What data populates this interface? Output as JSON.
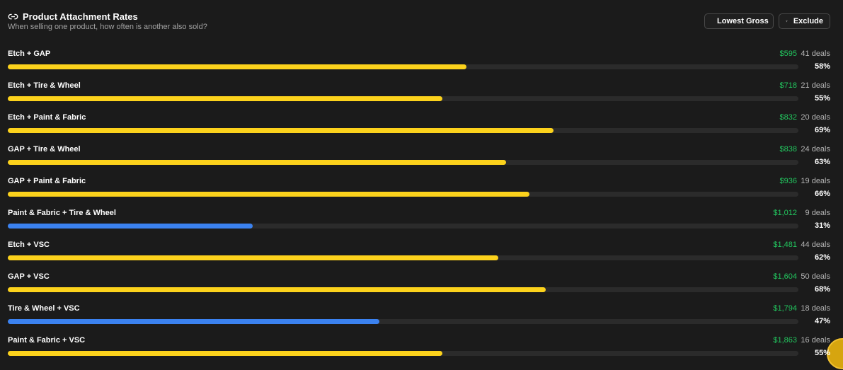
{
  "header": {
    "title": "Product Attachment Rates",
    "subtitle": "When selling one product, how often is another also sold?"
  },
  "buttons": {
    "sort": "Lowest Gross",
    "filter": "Exclude"
  },
  "rows": [
    {
      "label": "Etch + GAP",
      "gross": "$595",
      "deals": "41 deals",
      "rate": 58,
      "rate_label": "58%",
      "color": "#fcd21c"
    },
    {
      "label": "Etch + Tire & Wheel",
      "gross": "$718",
      "deals": "21 deals",
      "rate": 55,
      "rate_label": "55%",
      "color": "#fcd21c"
    },
    {
      "label": "Etch + Paint & Fabric",
      "gross": "$832",
      "deals": "20 deals",
      "rate": 69,
      "rate_label": "69%",
      "color": "#fcd21c"
    },
    {
      "label": "GAP + Tire & Wheel",
      "gross": "$838",
      "deals": "24 deals",
      "rate": 63,
      "rate_label": "63%",
      "color": "#fcd21c"
    },
    {
      "label": "GAP + Paint & Fabric",
      "gross": "$936",
      "deals": "19 deals",
      "rate": 66,
      "rate_label": "66%",
      "color": "#fcd21c"
    },
    {
      "label": "Paint & Fabric + Tire & Wheel",
      "gross": "$1,012",
      "deals": "9 deals",
      "rate": 31,
      "rate_label": "31%",
      "color": "#3b82f0"
    },
    {
      "label": "Etch + VSC",
      "gross": "$1,481",
      "deals": "44 deals",
      "rate": 62,
      "rate_label": "62%",
      "color": "#fcd21c"
    },
    {
      "label": "GAP + VSC",
      "gross": "$1,604",
      "deals": "50 deals",
      "rate": 68,
      "rate_label": "68%",
      "color": "#fcd21c"
    },
    {
      "label": "Tire & Wheel + VSC",
      "gross": "$1,794",
      "deals": "18 deals",
      "rate": 47,
      "rate_label": "47%",
      "color": "#3b82f0"
    },
    {
      "label": "Paint & Fabric + VSC",
      "gross": "$1,863",
      "deals": "16 deals",
      "rate": 55,
      "rate_label": "55%",
      "color": "#fcd21c"
    }
  ]
}
